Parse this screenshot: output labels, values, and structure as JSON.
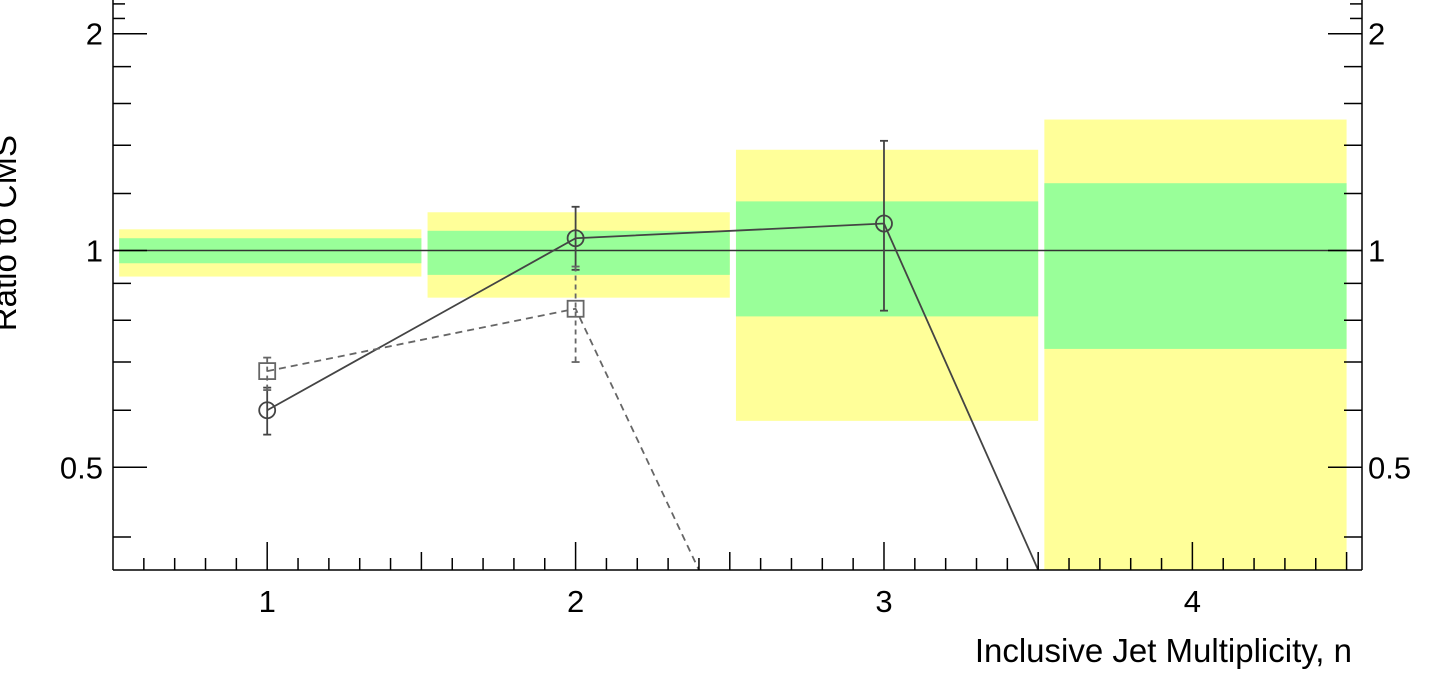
{
  "chart_data": {
    "type": "line",
    "xlabel": "Inclusive Jet Multiplicity, n",
    "ylabel": "Ratio to CMS",
    "xlim": [
      0.5,
      4.55
    ],
    "ylim": [
      0.36,
      2.3
    ],
    "yscale": "log",
    "x_ticks": [
      1,
      2,
      3,
      4
    ],
    "x_tick_labels": [
      "1",
      "2",
      "3",
      "4"
    ],
    "y_ticks": [
      0.5,
      1,
      2
    ],
    "y_tick_labels": [
      "0.5",
      "1",
      "2"
    ],
    "y_ticks_right": true,
    "reference_line": 1,
    "bands": [
      {
        "x0": 0.5,
        "x1": 1.5,
        "outer": [
          0.92,
          1.07
        ],
        "inner": [
          0.96,
          1.04
        ]
      },
      {
        "x0": 1.5,
        "x1": 2.5,
        "outer": [
          0.86,
          1.13
        ],
        "inner": [
          0.925,
          1.065
        ]
      },
      {
        "x0": 2.5,
        "x1": 3.5,
        "outer": [
          0.58,
          1.38
        ],
        "inner": [
          0.81,
          1.17
        ]
      },
      {
        "x0": 3.5,
        "x1": 4.5,
        "outer": [
          0.35,
          1.52
        ],
        "inner": [
          0.73,
          1.24
        ]
      }
    ],
    "band_colors": {
      "outer": "#ffff99",
      "inner": "#99ff99"
    },
    "series": [
      {
        "marker": "circle",
        "style": "solid",
        "color": "#444444",
        "points": [
          {
            "x": 1,
            "y": 0.6,
            "err": [
              0.555,
              0.645
            ]
          },
          {
            "x": 2,
            "y": 1.04,
            "err": [
              0.94,
              1.15
            ]
          },
          {
            "x": 3,
            "y": 1.09,
            "err": [
              0.825,
              1.42
            ]
          },
          {
            "x": 3.5,
            "y": 0.36,
            "err": null
          }
        ]
      },
      {
        "marker": "square",
        "style": "dashed",
        "color": "#666666",
        "points": [
          {
            "x": 1,
            "y": 0.68,
            "err": [
              0.64,
              0.71
            ]
          },
          {
            "x": 2,
            "y": 0.83,
            "err": [
              0.7,
              0.95
            ]
          },
          {
            "x": 2.4,
            "y": 0.36,
            "err": null
          }
        ]
      }
    ]
  }
}
